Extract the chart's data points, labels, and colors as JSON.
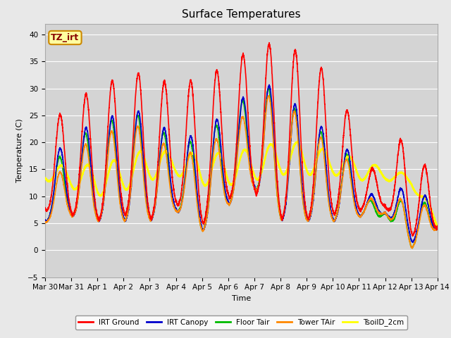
{
  "title": "Surface Temperatures",
  "xlabel": "Time",
  "ylabel": "Temperature (C)",
  "ylim": [
    -5,
    42
  ],
  "xlim": [
    0,
    15
  ],
  "fig_facecolor": "#e8e8e8",
  "axes_facecolor": "#d4d4d4",
  "annotation_text": "TZ_irt",
  "annotation_bg": "#ffffa0",
  "annotation_border": "#cc8800",
  "annotation_text_color": "#880000",
  "series": {
    "IRT Ground": {
      "color": "#ff0000",
      "lw": 1.2,
      "zorder": 5
    },
    "IRT Canopy": {
      "color": "#0000cc",
      "lw": 1.2,
      "zorder": 4
    },
    "Floor Tair": {
      "color": "#00bb00",
      "lw": 1.2,
      "zorder": 3
    },
    "Tower TAir": {
      "color": "#ff8800",
      "lw": 1.2,
      "zorder": 4
    },
    "TsoilD_2cm": {
      "color": "#ffff00",
      "lw": 1.8,
      "zorder": 3
    }
  },
  "xtick_labels": [
    "Mar 30",
    "Mar 31",
    "Apr 1",
    "Apr 2",
    "Apr 3",
    "Apr 4",
    "Apr 5",
    "Apr 6",
    "Apr 7",
    "Apr 8",
    "Apr 9",
    "Apr 10",
    "Apr 11",
    "Apr 12",
    "Apr 13",
    "Apr 14"
  ],
  "xtick_positions": [
    0,
    1,
    2,
    3,
    4,
    5,
    6,
    7,
    8,
    9,
    10,
    11,
    12,
    13,
    14,
    15
  ],
  "ytick_positions": [
    -5,
    0,
    5,
    10,
    15,
    20,
    25,
    30,
    35,
    40
  ],
  "grid_color": "#ffffff",
  "grid_lw": 0.8
}
